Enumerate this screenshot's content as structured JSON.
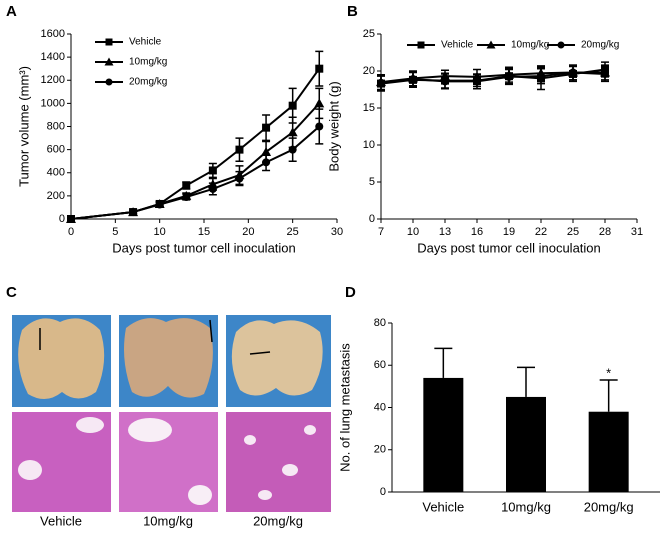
{
  "panels": {
    "labels": [
      "A",
      "B",
      "C",
      "D"
    ]
  },
  "figure_c": {
    "captions": [
      "Vehicle",
      "10mg/kg",
      "20mg/kg"
    ]
  },
  "chart_data": [
    {
      "type": "line",
      "xlabel": "Days post tumor cell inoculation",
      "ylabel": "Tumor volume (mm³)",
      "xlim": [
        0,
        30
      ],
      "xticks": [
        0,
        5,
        10,
        15,
        20,
        25,
        30
      ],
      "ylim": [
        0,
        1600
      ],
      "yticks": [
        0,
        200,
        400,
        600,
        800,
        1000,
        1200,
        1400,
        1600
      ],
      "legend": "upper left",
      "legend_direction": "column",
      "x": [
        0,
        7,
        10,
        13,
        16,
        19,
        22,
        25,
        28
      ],
      "series": [
        {
          "name": "Vehicle",
          "color": "#000000",
          "marker": "square",
          "values": [
            0,
            60,
            130,
            290,
            420,
            600,
            790,
            980,
            1300
          ],
          "errors": [
            0,
            15,
            20,
            30,
            60,
            100,
            110,
            150,
            150
          ]
        },
        {
          "name": "10mg/kg",
          "color": "#000000",
          "marker": "triangle",
          "values": [
            0,
            60,
            130,
            200,
            300,
            380,
            580,
            750,
            1000
          ],
          "errors": [
            0,
            10,
            20,
            25,
            50,
            80,
            90,
            130,
            130
          ]
        },
        {
          "name": "20mg/kg",
          "color": "#000000",
          "marker": "circle",
          "values": [
            0,
            60,
            125,
            190,
            260,
            350,
            490,
            600,
            800
          ],
          "errors": [
            0,
            10,
            20,
            25,
            50,
            60,
            70,
            100,
            150
          ]
        }
      ]
    },
    {
      "type": "line",
      "xlabel": "Days post tumor cell inoculation",
      "ylabel": "Body weight (g)",
      "xlim": [
        7,
        31
      ],
      "xticks": [
        7,
        10,
        13,
        16,
        19,
        22,
        25,
        28,
        31
      ],
      "ylim": [
        0,
        25
      ],
      "yticks": [
        0,
        5,
        10,
        15,
        20,
        25
      ],
      "legend": "upper center",
      "legend_direction": "row",
      "x": [
        7,
        10,
        13,
        16,
        19,
        22,
        25,
        28
      ],
      "series": [
        {
          "name": "Vehicle",
          "color": "#000000",
          "marker": "square",
          "values": [
            18.3,
            18.8,
            18.7,
            18.7,
            19.3,
            19.0,
            19.6,
            20.2
          ],
          "errors": [
            1,
            1,
            1,
            0.8,
            1,
            1.5,
            1,
            1
          ]
        },
        {
          "name": "10mg/kg",
          "color": "#000000",
          "marker": "triangle",
          "values": [
            18.5,
            19.0,
            19.3,
            19.2,
            19.5,
            19.7,
            19.8,
            19.8
          ],
          "errors": [
            1,
            1,
            0.8,
            1,
            1,
            1,
            1,
            1
          ]
        },
        {
          "name": "20mg/kg",
          "color": "#000000",
          "marker": "circle",
          "values": [
            18.4,
            18.9,
            18.6,
            18.6,
            19.2,
            19.3,
            19.8,
            19.6
          ],
          "errors": [
            1,
            1,
            1,
            1,
            1,
            1,
            1,
            1
          ]
        }
      ]
    },
    {
      "type": "bar",
      "ylabel": "No. of lung metastasis",
      "ylim": [
        0,
        80
      ],
      "yticks": [
        0,
        20,
        40,
        60,
        80
      ],
      "categories": [
        "Vehicle",
        "10mg/kg",
        "20mg/kg"
      ],
      "values": [
        54,
        45,
        38
      ],
      "errors": [
        14,
        14,
        15
      ],
      "significance": [
        null,
        null,
        "*"
      ],
      "color": "#000000"
    }
  ]
}
